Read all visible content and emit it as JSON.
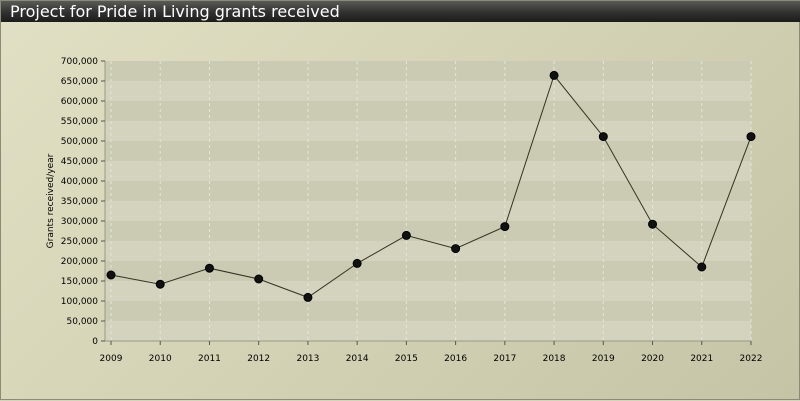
{
  "chart_data": {
    "type": "line",
    "title": "Project for Pride in Living grants received",
    "xlabel": "",
    "ylabel": "Grants received/year",
    "x": [
      "2009",
      "2010",
      "2011",
      "2012",
      "2013",
      "2014",
      "2015",
      "2016",
      "2017",
      "2018",
      "2019",
      "2020",
      "2021",
      "2022"
    ],
    "series": [
      {
        "values": [
          165000,
          142000,
          182000,
          155000,
          109000,
          194000,
          264000,
          231000,
          286000,
          664000,
          511000,
          292000,
          185000,
          511000
        ],
        "color": "#333322"
      }
    ],
    "ylim": [
      0,
      700000
    ],
    "yticks": [
      0,
      50000,
      100000,
      150000,
      200000,
      250000,
      300000,
      350000,
      400000,
      450000,
      500000,
      550000,
      600000,
      650000,
      700000
    ],
    "ytick_labels": [
      "0",
      "50,000",
      "100,000",
      "150,000",
      "200,000",
      "250,000",
      "300,000",
      "350,000",
      "400,000",
      "450,000",
      "500,000",
      "550,000",
      "600,000",
      "650,000",
      "700,000"
    ],
    "grid": true,
    "legend": "none",
    "colors": {
      "header": "#2a2a2a",
      "background": "#d6d5bb",
      "plot_band_light": "#d4d3bd",
      "plot_band_dark": "#cbcab3",
      "line": "#333322",
      "marker": "#111111"
    }
  }
}
